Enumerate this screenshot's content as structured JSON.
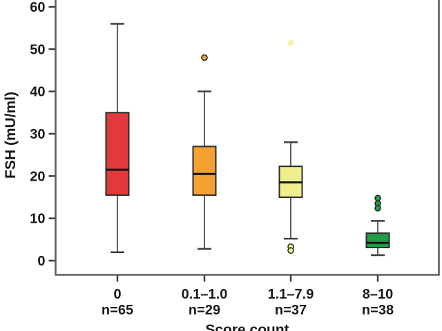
{
  "figure": {
    "ylabel": "FSH (mU/ml)",
    "xlabel": "Score count"
  },
  "chart_data": {
    "type": "boxplot",
    "title": "",
    "xlabel": "Score count",
    "ylabel": "FSH (mU/ml)",
    "ylim": [
      0,
      60
    ],
    "yticks": [
      0,
      10,
      20,
      30,
      40,
      50,
      60
    ],
    "grid": false,
    "legend": "none",
    "categories": [
      "0",
      "0.1–1.0",
      "1.1–7.9",
      "8–10"
    ],
    "category_counts": [
      "n=65",
      "n=29",
      "n=37",
      "n=38"
    ],
    "series": [
      {
        "category": "0",
        "count_label": "n=65",
        "color": "#e23a3c",
        "whisker_low": 2,
        "q1": 15.5,
        "median": 21.5,
        "q3": 35,
        "whisker_high": 56,
        "outliers": [],
        "faint_outliers": []
      },
      {
        "category": "0.1–1.0",
        "count_label": "n=29",
        "color": "#f2a132",
        "whisker_low": 2.8,
        "q1": 15.5,
        "median": 20.5,
        "q3": 27,
        "whisker_high": 40,
        "outliers": [
          48
        ],
        "faint_outliers": []
      },
      {
        "category": "1.1–7.9",
        "count_label": "n=37",
        "color": "#efee8d",
        "whisker_low": 5.2,
        "q1": 15,
        "median": 18.5,
        "q3": 22.3,
        "whisker_high": 28,
        "outliers": [
          3.3,
          2.4
        ],
        "faint_outliers": [
          51.5
        ]
      },
      {
        "category": "8–10",
        "count_label": "n=38",
        "color": "#1e9c46",
        "whisker_low": 1.3,
        "q1": 3.1,
        "median": 4.2,
        "q3": 6.5,
        "whisker_high": 9.4,
        "outliers": [
          14.8,
          13.5,
          12.4
        ],
        "faint_outliers": []
      }
    ],
    "colors": {
      "axis": "#5f5f5f",
      "tick": "#3d3d3d",
      "text": "#1a1a1a",
      "box_border": "#2b2b2b",
      "whisker": "#5f5f5f",
      "whisker_cap": "#3d3d3d",
      "median": "#141414"
    }
  }
}
